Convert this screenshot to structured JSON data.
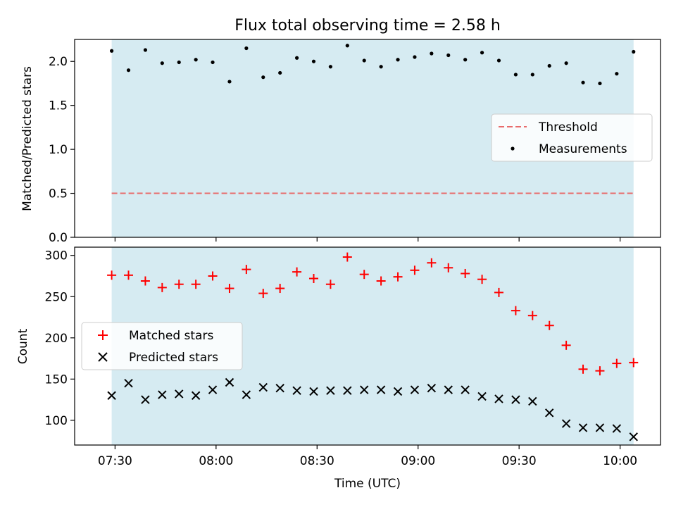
{
  "figure": {
    "title": "Flux total observing time = 2.58 h",
    "xlabel": "Time (UTC)",
    "xticks": [
      "07:30",
      "08:00",
      "08:30",
      "09:00",
      "09:30",
      "10:00"
    ]
  },
  "chart_data": [
    {
      "type": "scatter",
      "panel": "top",
      "title": "Flux total observing time = 2.58 h",
      "ylabel": "Matched/Predicted stars",
      "ylim": [
        0,
        2.25
      ],
      "yticks": [
        "0.0",
        "0.5",
        "1.0",
        "1.5",
        "2.0"
      ],
      "xlim": [
        "07:18",
        "10:12"
      ],
      "shaded_interval": [
        "07:29",
        "10:04"
      ],
      "shade_color": "#add8e6",
      "threshold": 0.5,
      "threshold_color": "#e86b6b",
      "legend": {
        "position": "center-right",
        "entries": [
          "Threshold",
          "Measurements"
        ]
      },
      "x": [
        "07:29",
        "07:34",
        "07:39",
        "07:44",
        "07:49",
        "07:54",
        "07:59",
        "08:04",
        "08:09",
        "08:14",
        "08:19",
        "08:24",
        "08:29",
        "08:34",
        "08:39",
        "08:44",
        "08:49",
        "08:54",
        "08:59",
        "09:04",
        "09:09",
        "09:14",
        "09:19",
        "09:24",
        "09:29",
        "09:34",
        "09:39",
        "09:44",
        "09:49",
        "09:54",
        "09:59",
        "10:04"
      ],
      "series": [
        {
          "name": "Measurements",
          "marker": "dot",
          "color": "#000000",
          "values": [
            2.12,
            1.9,
            2.13,
            1.98,
            1.99,
            2.02,
            1.99,
            1.77,
            2.15,
            1.82,
            1.87,
            2.04,
            2.0,
            1.94,
            2.18,
            2.01,
            1.94,
            2.02,
            2.05,
            2.09,
            2.07,
            2.02,
            2.1,
            2.01,
            1.85,
            1.85,
            1.95,
            1.98,
            1.76,
            1.75,
            1.86,
            2.11
          ]
        }
      ]
    },
    {
      "type": "scatter",
      "panel": "bottom",
      "ylabel": "Count",
      "ylim": [
        70,
        310
      ],
      "yticks": [
        "100",
        "150",
        "200",
        "250",
        "300"
      ],
      "xlim": [
        "07:18",
        "10:12"
      ],
      "shaded_interval": [
        "07:29",
        "10:04"
      ],
      "shade_color": "#add8e6",
      "legend": {
        "position": "center-left",
        "entries": [
          "Matched stars",
          "Predicted stars"
        ]
      },
      "x": [
        "07:29",
        "07:34",
        "07:39",
        "07:44",
        "07:49",
        "07:54",
        "07:59",
        "08:04",
        "08:09",
        "08:14",
        "08:19",
        "08:24",
        "08:29",
        "08:34",
        "08:39",
        "08:44",
        "08:49",
        "08:54",
        "08:59",
        "09:04",
        "09:09",
        "09:14",
        "09:19",
        "09:24",
        "09:29",
        "09:34",
        "09:39",
        "09:44",
        "09:49",
        "09:54",
        "09:59",
        "10:04"
      ],
      "series": [
        {
          "name": "Matched stars",
          "marker": "plus",
          "color": "#ff0000",
          "values": [
            276,
            276,
            269,
            261,
            265,
            265,
            275,
            260,
            283,
            254,
            260,
            280,
            272,
            265,
            298,
            277,
            269,
            274,
            282,
            291,
            285,
            278,
            271,
            255,
            233,
            227,
            215,
            191,
            162,
            160,
            169,
            170
          ]
        },
        {
          "name": "Predicted stars",
          "marker": "x",
          "color": "#000000",
          "values": [
            130,
            145,
            125,
            131,
            132,
            130,
            137,
            146,
            131,
            140,
            139,
            136,
            135,
            136,
            136,
            137,
            137,
            135,
            137,
            139,
            137,
            137,
            129,
            126,
            125,
            123,
            109,
            96,
            91,
            91,
            90,
            80
          ]
        }
      ]
    }
  ]
}
